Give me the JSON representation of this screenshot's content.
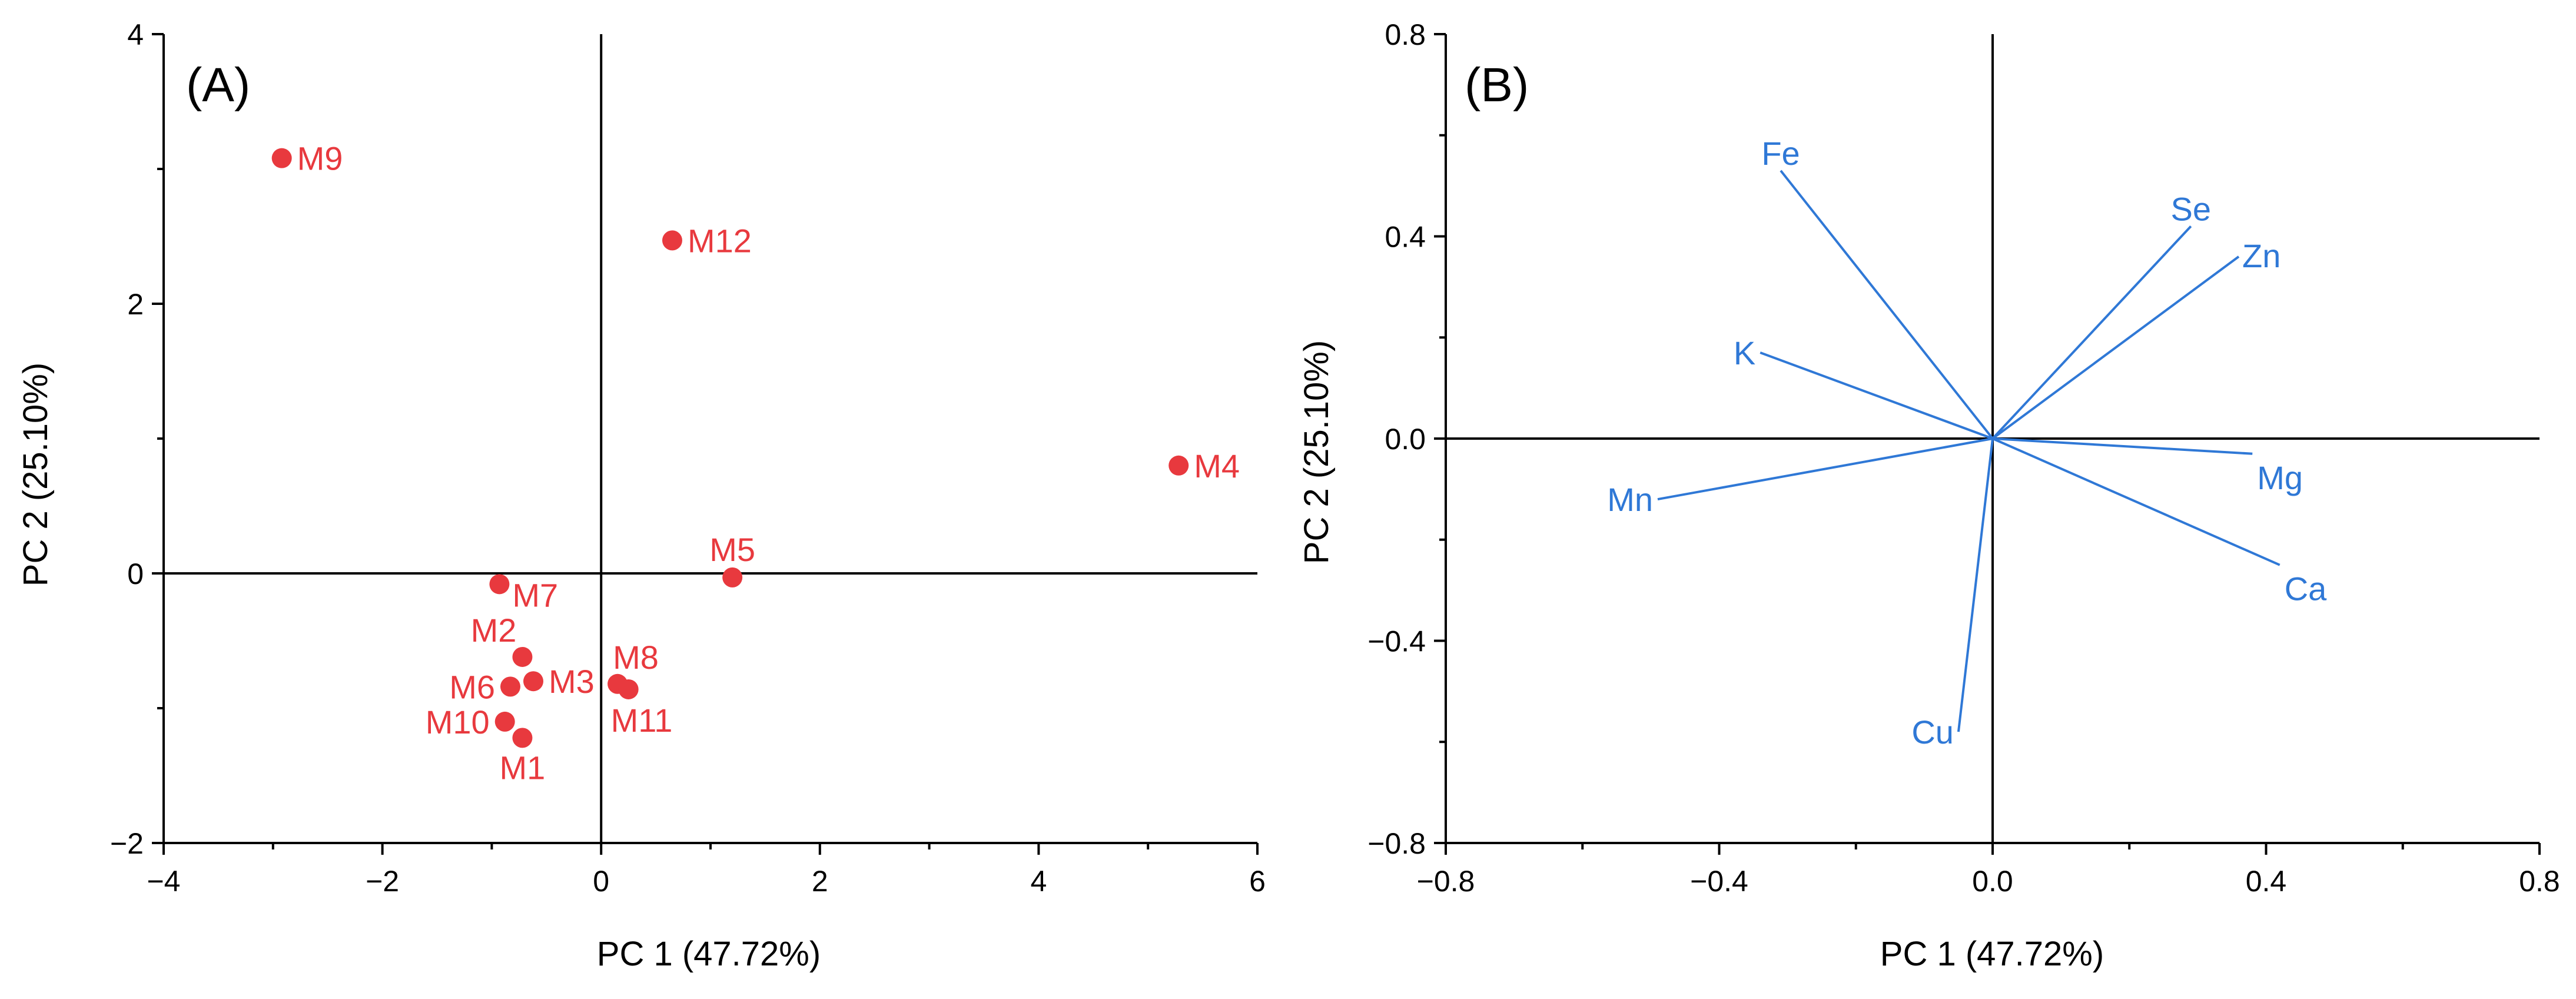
{
  "colors": {
    "scores": "#e8393e",
    "loadings": "#2f78d6",
    "axes": "#000000"
  },
  "chart_data": [
    {
      "type": "scatter",
      "panel": "(A)",
      "xlabel": "PC 1 (47.72%)",
      "ylabel": "PC 2 (25.10%)",
      "xlim": [
        -4,
        6
      ],
      "ylim": [
        -2,
        4
      ],
      "xticks": [
        -4,
        -2,
        0,
        2,
        4,
        6
      ],
      "yticks": [
        -2,
        0,
        2,
        4
      ],
      "xtick_labels": [
        "−4",
        "−2",
        "0",
        "2",
        "4",
        "6"
      ],
      "ytick_labels": [
        "−2",
        "0",
        "2",
        "4"
      ],
      "points": [
        {
          "name": "M1",
          "x": -0.72,
          "y": -1.22,
          "label_pos": "below"
        },
        {
          "name": "M2",
          "x": -0.72,
          "y": -0.62,
          "label_pos": "upper-left"
        },
        {
          "name": "M3",
          "x": -0.62,
          "y": -0.8,
          "label_pos": "right"
        },
        {
          "name": "M4",
          "x": 5.28,
          "y": 0.8,
          "label_pos": "right"
        },
        {
          "name": "M5",
          "x": 1.2,
          "y": -0.03,
          "label_pos": "above"
        },
        {
          "name": "M6",
          "x": -0.83,
          "y": -0.84,
          "label_pos": "left"
        },
        {
          "name": "M7",
          "x": -0.93,
          "y": -0.08,
          "label_pos": "right-below"
        },
        {
          "name": "M8",
          "x": 0.15,
          "y": -0.82,
          "label_pos": "upper-right"
        },
        {
          "name": "M9",
          "x": -2.92,
          "y": 3.08,
          "label_pos": "right"
        },
        {
          "name": "M10",
          "x": -0.88,
          "y": -1.1,
          "label_pos": "left"
        },
        {
          "name": "M11",
          "x": 0.25,
          "y": -0.86,
          "label_pos": "below-right"
        },
        {
          "name": "M12",
          "x": 0.65,
          "y": 2.47,
          "label_pos": "right"
        }
      ]
    },
    {
      "type": "biplot-loadings",
      "panel": "(B)",
      "xlabel": "PC 1 (47.72%)",
      "ylabel": "PC 2 (25.10%)",
      "xlim": [
        -0.8,
        0.8
      ],
      "ylim": [
        -0.8,
        0.8
      ],
      "xticks": [
        -0.8,
        -0.4,
        0.0,
        0.4,
        0.8
      ],
      "yticks": [
        -0.8,
        -0.4,
        0.0,
        0.4,
        0.8
      ],
      "xtick_labels": [
        "−0.8",
        "−0.4",
        "0.0",
        "0.4",
        "0.8"
      ],
      "ytick_labels": [
        "−0.8",
        "−0.4",
        "0.0",
        "0.4",
        "0.8"
      ],
      "vectors": [
        {
          "name": "Fe",
          "x": -0.31,
          "y": 0.53,
          "label_pos": "above"
        },
        {
          "name": "Se",
          "x": 0.29,
          "y": 0.42,
          "label_pos": "above"
        },
        {
          "name": "Zn",
          "x": 0.36,
          "y": 0.36,
          "label_pos": "right"
        },
        {
          "name": "K",
          "x": -0.34,
          "y": 0.17,
          "label_pos": "left"
        },
        {
          "name": "Mg",
          "x": 0.38,
          "y": -0.03,
          "label_pos": "below"
        },
        {
          "name": "Mn",
          "x": -0.49,
          "y": -0.12,
          "label_pos": "left"
        },
        {
          "name": "Ca",
          "x": 0.42,
          "y": -0.25,
          "label_pos": "below"
        },
        {
          "name": "Cu",
          "x": -0.05,
          "y": -0.58,
          "label_pos": "left"
        }
      ]
    }
  ]
}
